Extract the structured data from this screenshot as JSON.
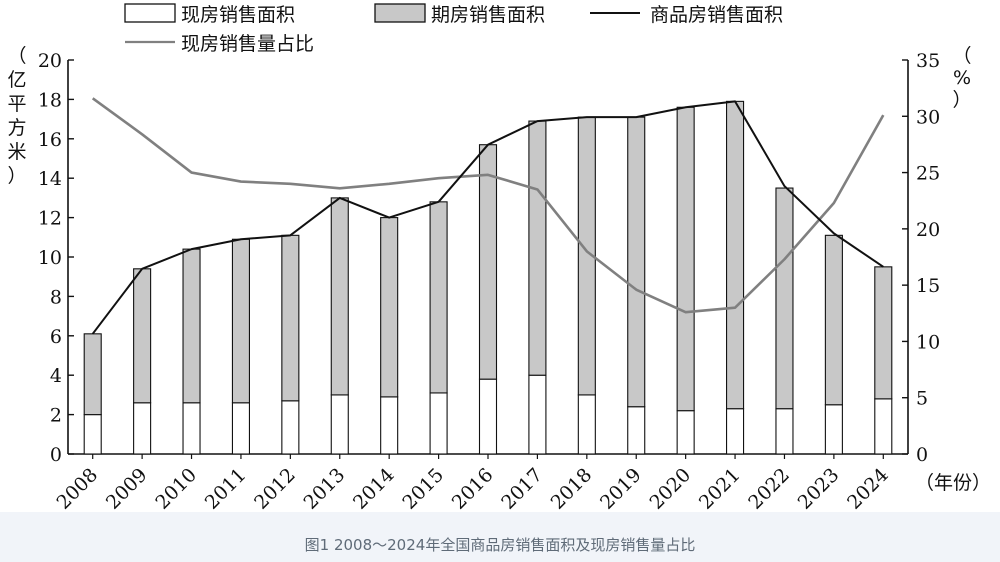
{
  "caption": "图1 2008～2024年全国商品房销售面积及现房销售量占比",
  "chart_data": {
    "type": "bar",
    "categories": [
      "2008",
      "2009",
      "2010",
      "2011",
      "2012",
      "2013",
      "2014",
      "2015",
      "2016",
      "2017",
      "2018",
      "2019",
      "2020",
      "2021",
      "2022",
      "2023",
      "2024"
    ],
    "series": [
      {
        "name": "现房销售面积",
        "kind": "stacked-bar",
        "axis": "left",
        "color": "#ffffff",
        "values": [
          2.0,
          2.6,
          2.6,
          2.6,
          2.7,
          3.0,
          2.9,
          3.1,
          3.8,
          4.0,
          3.0,
          2.4,
          2.2,
          2.3,
          2.3,
          2.5,
          2.8
        ]
      },
      {
        "name": "期房销售面积",
        "kind": "stacked-bar",
        "axis": "left",
        "color": "#c8c8c8",
        "values": [
          4.1,
          6.8,
          7.8,
          8.3,
          8.4,
          10.0,
          9.1,
          9.7,
          11.9,
          12.9,
          14.1,
          14.7,
          15.4,
          15.6,
          11.2,
          8.6,
          6.7
        ]
      },
      {
        "name": "商品房销售面积",
        "kind": "line",
        "axis": "left",
        "color": "#111111",
        "values": [
          6.1,
          9.4,
          10.4,
          10.9,
          11.1,
          13.0,
          12.0,
          12.8,
          15.7,
          16.9,
          17.1,
          17.1,
          17.6,
          17.9,
          13.6,
          11.2,
          9.5
        ]
      },
      {
        "name": "现房销售量占比",
        "kind": "line",
        "axis": "right",
        "color": "#808080",
        "values": [
          31.6,
          28.4,
          25.0,
          24.2,
          24.0,
          23.6,
          24.0,
          24.5,
          24.8,
          23.5,
          18.0,
          14.6,
          12.6,
          13.0,
          17.3,
          22.3,
          30.1
        ]
      }
    ],
    "ylabel_left": "（亿平方米）",
    "ylabel_right": "（%）",
    "xlabel": "（年份）",
    "ylim_left": [
      0,
      20
    ],
    "yticks_left": [
      "0",
      "2",
      "4",
      "6",
      "8",
      "10",
      "12",
      "14",
      "16",
      "18",
      "20"
    ],
    "ylim_right": [
      0,
      35
    ],
    "yticks_right": [
      "0",
      "5",
      "10",
      "15",
      "20",
      "25",
      "30",
      "35"
    ],
    "grid": false,
    "legend_position": "top"
  }
}
